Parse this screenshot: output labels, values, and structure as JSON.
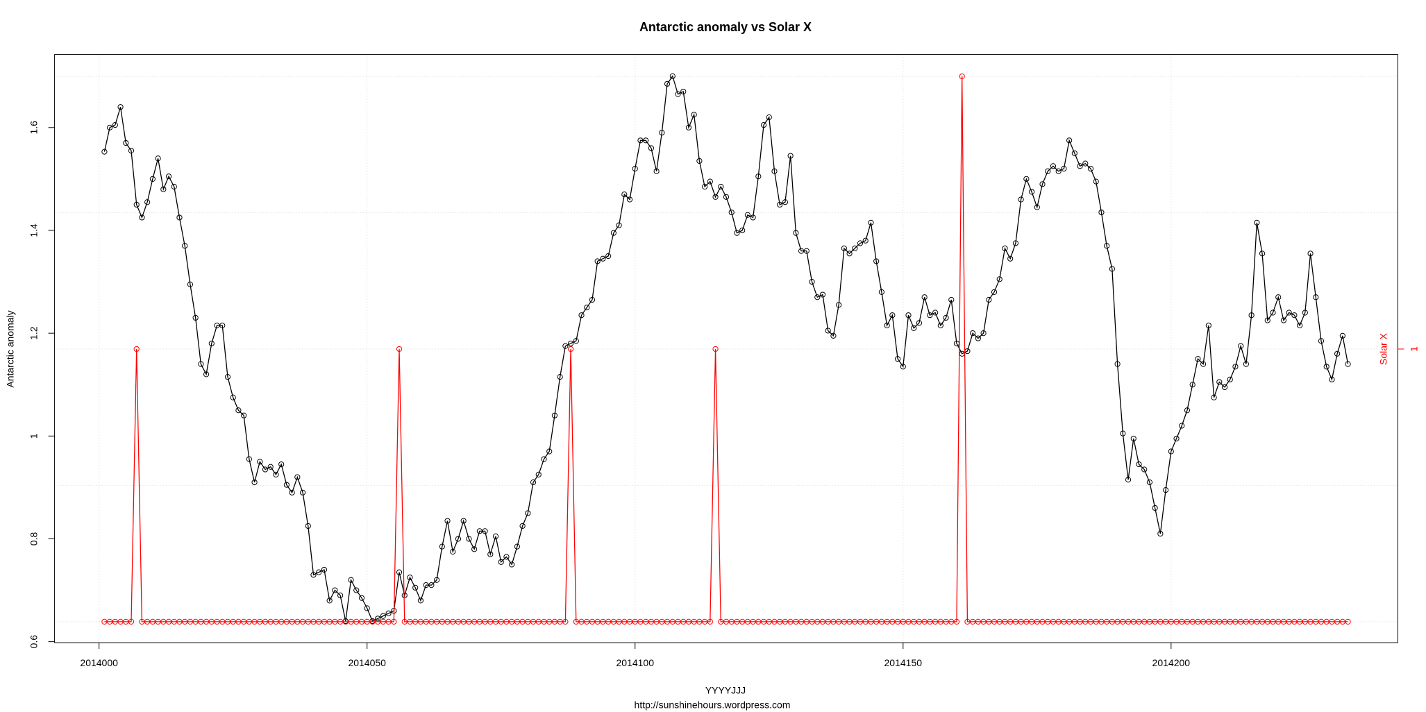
{
  "chart_data": {
    "type": "line",
    "title": "Antarctic anomaly  vs  Solar X",
    "xlabel": "YYYYJJJ",
    "subtitle": "http://sunshinehours.wordpress.com",
    "ylabel": "Antarctic anomaly",
    "y2label": "Solar X",
    "x": [
      2014001,
      2014002,
      2014003,
      2014004,
      2014005,
      2014006,
      2014007,
      2014008,
      2014009,
      2014010,
      2014011,
      2014012,
      2014013,
      2014014,
      2014015,
      2014016,
      2014017,
      2014018,
      2014019,
      2014020,
      2014021,
      2014022,
      2014023,
      2014024,
      2014025,
      2014026,
      2014027,
      2014028,
      2014029,
      2014030,
      2014031,
      2014032,
      2014033,
      2014034,
      2014035,
      2014036,
      2014037,
      2014038,
      2014039,
      2014040,
      2014041,
      2014042,
      2014043,
      2014044,
      2014045,
      2014046,
      2014047,
      2014048,
      2014049,
      2014050,
      2014051,
      2014052,
      2014053,
      2014054,
      2014055,
      2014056,
      2014057,
      2014058,
      2014059,
      2014060,
      2014061,
      2014062,
      2014063,
      2014064,
      2014065,
      2014066,
      2014067,
      2014068,
      2014069,
      2014070,
      2014071,
      2014072,
      2014073,
      2014074,
      2014075,
      2014076,
      2014077,
      2014078,
      2014079,
      2014080,
      2014081,
      2014082,
      2014083,
      2014084,
      2014085,
      2014086,
      2014087,
      2014088,
      2014089,
      2014090,
      2014091,
      2014092,
      2014093,
      2014094,
      2014095,
      2014096,
      2014097,
      2014098,
      2014099,
      2014100,
      2014101,
      2014102,
      2014103,
      2014104,
      2014105,
      2014106,
      2014107,
      2014108,
      2014109,
      2014110,
      2014111,
      2014112,
      2014113,
      2014114,
      2014115,
      2014116,
      2014117,
      2014118,
      2014119,
      2014120,
      2014121,
      2014122,
      2014123,
      2014124,
      2014125,
      2014126,
      2014127,
      2014128,
      2014129,
      2014130,
      2014131,
      2014132,
      2014133,
      2014134,
      2014135,
      2014136,
      2014137,
      2014138,
      2014139,
      2014140,
      2014141,
      2014142,
      2014143,
      2014144,
      2014145,
      2014146,
      2014147,
      2014148,
      2014149,
      2014150,
      2014151,
      2014152,
      2014153,
      2014154,
      2014155,
      2014156,
      2014157,
      2014158,
      2014159,
      2014160,
      2014161,
      2014162,
      2014163,
      2014164,
      2014165,
      2014166,
      2014167,
      2014168,
      2014169,
      2014170,
      2014171,
      2014172,
      2014173,
      2014174,
      2014175,
      2014176,
      2014177,
      2014178,
      2014179,
      2014180,
      2014181,
      2014182,
      2014183,
      2014184,
      2014185,
      2014186,
      2014187,
      2014188,
      2014189,
      2014190,
      2014191,
      2014192,
      2014193,
      2014194,
      2014195,
      2014196,
      2014197,
      2014198,
      2014199,
      2014200,
      2014201,
      2014202,
      2014203,
      2014204,
      2014205,
      2014206,
      2014207,
      2014208,
      2014209,
      2014210,
      2014211,
      2014212,
      2014213,
      2014214,
      2014215,
      2014216,
      2014217,
      2014218,
      2014219,
      2014220,
      2014221,
      2014222,
      2014223,
      2014224,
      2014225,
      2014226,
      2014227,
      2014228,
      2014229,
      2014230,
      2014231,
      2014232,
      2014233
    ],
    "series": [
      {
        "color": "#000000",
        "values": [
          1.553,
          1.6,
          1.605,
          1.64,
          1.57,
          1.555,
          1.45,
          1.425,
          1.455,
          1.5,
          1.54,
          1.48,
          1.505,
          1.485,
          1.425,
          1.37,
          1.295,
          1.23,
          1.14,
          1.12,
          1.18,
          1.215,
          1.215,
          1.115,
          1.075,
          1.05,
          1.04,
          0.955,
          0.91,
          0.95,
          0.935,
          0.94,
          0.925,
          0.945,
          0.905,
          0.89,
          0.92,
          0.89,
          0.825,
          0.73,
          0.735,
          0.74,
          0.68,
          0.7,
          0.69,
          0.64,
          0.72,
          0.7,
          0.685,
          0.665,
          0.64,
          0.645,
          0.65,
          0.655,
          0.66,
          0.735,
          0.69,
          0.725,
          0.705,
          0.68,
          0.71,
          0.71,
          0.72,
          0.785,
          0.835,
          0.775,
          0.8,
          0.835,
          0.8,
          0.78,
          0.815,
          0.815,
          0.77,
          0.805,
          0.755,
          0.765,
          0.75,
          0.785,
          0.825,
          0.85,
          0.91,
          0.925,
          0.955,
          0.97,
          1.04,
          1.115,
          1.175,
          1.18,
          1.185,
          1.235,
          1.25,
          1.265,
          1.34,
          1.345,
          1.35,
          1.395,
          1.41,
          1.47,
          1.46,
          1.52,
          1.575,
          1.575,
          1.56,
          1.515,
          1.59,
          1.685,
          1.7,
          1.665,
          1.67,
          1.6,
          1.625,
          1.535,
          1.485,
          1.495,
          1.465,
          1.485,
          1.465,
          1.435,
          1.395,
          1.4,
          1.43,
          1.425,
          1.505,
          1.605,
          1.62,
          1.515,
          1.45,
          1.455,
          1.545,
          1.395,
          1.36,
          1.36,
          1.3,
          1.27,
          1.275,
          1.205,
          1.195,
          1.255,
          1.365,
          1.355,
          1.365,
          1.375,
          1.38,
          1.415,
          1.34,
          1.28,
          1.215,
          1.235,
          1.15,
          1.135,
          1.235,
          1.21,
          1.22,
          1.27,
          1.235,
          1.24,
          1.215,
          1.23,
          1.265,
          1.18,
          1.16,
          1.165,
          1.2,
          1.19,
          1.2,
          1.265,
          1.28,
          1.305,
          1.365,
          1.345,
          1.375,
          1.46,
          1.5,
          1.475,
          1.445,
          1.49,
          1.515,
          1.525,
          1.515,
          1.52,
          1.575,
          1.55,
          1.525,
          1.53,
          1.52,
          1.495,
          1.435,
          1.37,
          1.325,
          1.14,
          1.005,
          0.915,
          0.995,
          0.945,
          0.935,
          0.91,
          0.86,
          0.81,
          0.895,
          0.97,
          0.995,
          1.02,
          1.05,
          1.1,
          1.15,
          1.14,
          1.215,
          1.075,
          1.105,
          1.095,
          1.11,
          1.135,
          1.175,
          1.14,
          1.235,
          1.415,
          1.355,
          1.225,
          1.24,
          1.27,
          1.225,
          1.24,
          1.235,
          1.215,
          1.24,
          1.355,
          1.27,
          1.185,
          1.135,
          1.11,
          1.16,
          1.195,
          1.14
        ]
      },
      {
        "color": "#ff0000",
        "axis": "y2",
        "values": [
          0,
          0,
          0,
          0,
          0,
          0,
          1,
          0,
          0,
          0,
          0,
          0,
          0,
          0,
          0,
          0,
          0,
          0,
          0,
          0,
          0,
          0,
          0,
          0,
          0,
          0,
          0,
          0,
          0,
          0,
          0,
          0,
          0,
          0,
          0,
          0,
          0,
          0,
          0,
          0,
          0,
          0,
          0,
          0,
          0,
          0,
          0,
          0,
          0,
          0,
          0,
          0,
          0,
          0,
          0,
          1,
          0,
          0,
          0,
          0,
          0,
          0,
          0,
          0,
          0,
          0,
          0,
          0,
          0,
          0,
          0,
          0,
          0,
          0,
          0,
          0,
          0,
          0,
          0,
          0,
          0,
          0,
          0,
          0,
          0,
          0,
          0,
          1,
          0,
          0,
          0,
          0,
          0,
          0,
          0,
          0,
          0,
          0,
          0,
          0,
          0,
          0,
          0,
          0,
          0,
          0,
          0,
          0,
          0,
          0,
          0,
          0,
          0,
          0,
          1,
          0,
          0,
          0,
          0,
          0,
          0,
          0,
          0,
          0,
          0,
          0,
          0,
          0,
          0,
          0,
          0,
          0,
          0,
          0,
          0,
          0,
          0,
          0,
          0,
          0,
          0,
          0,
          0,
          0,
          0,
          0,
          0,
          0,
          0,
          0,
          0,
          0,
          0,
          0,
          0,
          0,
          0,
          0,
          0,
          0,
          2,
          0,
          0,
          0,
          0,
          0,
          0,
          0,
          0,
          0,
          0,
          0,
          0,
          0,
          0,
          0,
          0,
          0,
          0,
          0,
          0,
          0,
          0,
          0,
          0,
          0,
          0,
          0,
          0,
          0,
          0,
          0,
          0,
          0,
          0,
          0,
          0,
          0,
          0,
          0,
          0,
          0,
          0,
          0,
          0,
          0,
          0,
          0,
          0,
          0,
          0,
          0,
          0,
          0,
          0,
          0,
          0,
          0,
          0,
          0,
          0,
          0,
          0,
          0,
          0,
          0,
          0,
          0,
          0,
          0,
          0,
          0,
          0
        ]
      }
    ],
    "xlim": [
      2013991.7,
      2014242.3
    ],
    "xticks": [
      2014000,
      2014050,
      2014100,
      2014150,
      2014200
    ],
    "ylim": [
      0.598,
      1.742
    ],
    "yticks": [
      0.6,
      0.8,
      1.0,
      1.2,
      1.4,
      1.6
    ],
    "y2lim": [
      -0.077,
      2.08
    ],
    "y2ticks": [
      1
    ],
    "y2grid": [
      0,
      0.5,
      1,
      1.5,
      2
    ],
    "grid": true
  }
}
